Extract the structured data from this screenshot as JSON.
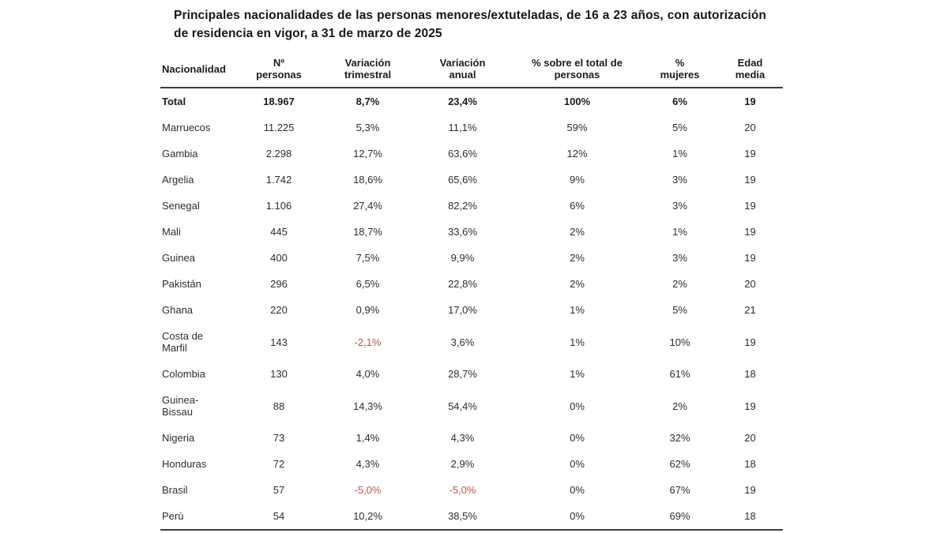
{
  "title": "Principales nacionalidades de las personas menores/extuteladas, de 16 a 23 años, con autorización de residencia en vigor, a 31 de marzo de 2025",
  "colors": {
    "text": "#2e2e2e",
    "bold_text": "#1c1c1c",
    "negative_value": "#c0504d",
    "rule_line": "#3c3c3c",
    "background": "#ffffff"
  },
  "chart_data": {
    "type": "table",
    "title": "Principales nacionalidades de las personas menores/extuteladas, de 16 a 23 años, con autorización de residencia en vigor, a 31 de marzo de 2025",
    "columns": [
      {
        "key": "nacionalidad",
        "label": "Nacionalidad"
      },
      {
        "key": "n_personas",
        "label": "Nº\npersonas"
      },
      {
        "key": "variacion_trimestral",
        "label": "Variación\ntrimestral"
      },
      {
        "key": "variacion_anual",
        "label": "Variación\nanual"
      },
      {
        "key": "pct_sobre_total",
        "label": "% sobre el total de\npersonas"
      },
      {
        "key": "pct_mujeres",
        "label": "%\nmujeres"
      },
      {
        "key": "edad_media",
        "label": "Edad\nmedia"
      }
    ],
    "rows": [
      {
        "bold": true,
        "values": [
          "Total",
          "18.967",
          "8,7%",
          "23,4%",
          "100%",
          "6%",
          "19"
        ]
      },
      {
        "bold": false,
        "values": [
          "Marruecos",
          "11.225",
          "5,3%",
          "11,1%",
          "59%",
          "5%",
          "20"
        ]
      },
      {
        "bold": false,
        "values": [
          "Gambia",
          "2.298",
          "12,7%",
          "63,6%",
          "12%",
          "1%",
          "19"
        ]
      },
      {
        "bold": false,
        "values": [
          "Argelia",
          "1.742",
          "18,6%",
          "65,6%",
          "9%",
          "3%",
          "19"
        ]
      },
      {
        "bold": false,
        "values": [
          "Senegal",
          "1.106",
          "27,4%",
          "82,2%",
          "6%",
          "3%",
          "19"
        ]
      },
      {
        "bold": false,
        "values": [
          "Mali",
          "445",
          "18,7%",
          "33,6%",
          "2%",
          "1%",
          "19"
        ]
      },
      {
        "bold": false,
        "values": [
          "Guinea",
          "400",
          "7,5%",
          "9,9%",
          "2%",
          "3%",
          "19"
        ]
      },
      {
        "bold": false,
        "values": [
          "Pakistán",
          "296",
          "6,5%",
          "22,8%",
          "2%",
          "2%",
          "20"
        ]
      },
      {
        "bold": false,
        "values": [
          "Ghana",
          "220",
          "0,9%",
          "17,0%",
          "1%",
          "5%",
          "21"
        ]
      },
      {
        "bold": false,
        "values": [
          "Costa de Marfil",
          "143",
          "-2,1%",
          "3,6%",
          "1%",
          "10%",
          "19"
        ]
      },
      {
        "bold": false,
        "values": [
          "Colombia",
          "130",
          "4,0%",
          "28,7%",
          "1%",
          "61%",
          "18"
        ]
      },
      {
        "bold": false,
        "values": [
          "Guinea-Bissau",
          "88",
          "14,3%",
          "54,4%",
          "0%",
          "2%",
          "19"
        ]
      },
      {
        "bold": false,
        "values": [
          "Nigeria",
          "73",
          "1,4%",
          "4,3%",
          "0%",
          "32%",
          "20"
        ]
      },
      {
        "bold": false,
        "values": [
          "Honduras",
          "72",
          "4,3%",
          "2,9%",
          "0%",
          "62%",
          "18"
        ]
      },
      {
        "bold": false,
        "values": [
          "Brasil",
          "57",
          "-5,0%",
          "-5,0%",
          "0%",
          "67%",
          "19"
        ]
      },
      {
        "bold": false,
        "values": [
          "Perú",
          "54",
          "10,2%",
          "38,5%",
          "0%",
          "69%",
          "18"
        ]
      }
    ]
  }
}
